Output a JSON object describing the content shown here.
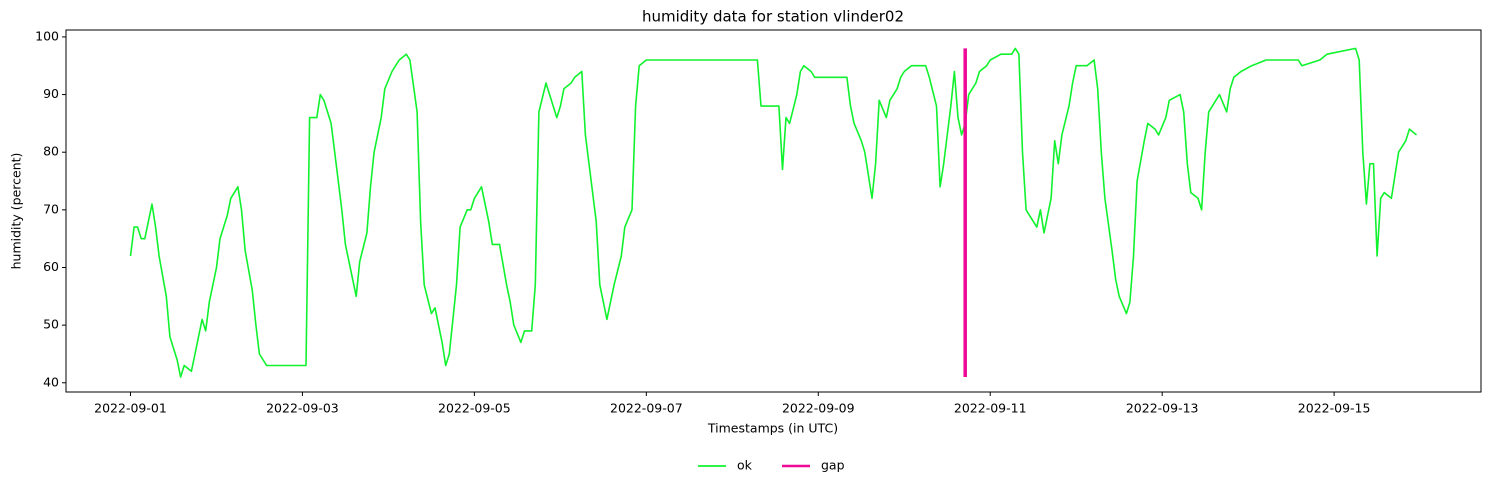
{
  "chart_data": {
    "type": "line",
    "title": "humidity data for station vlinder02",
    "xlabel": "Timestamps (in UTC)",
    "ylabel": "humidity (percent)",
    "xlim": [
      "2022-08-31 06:00",
      "2022-09-16 17:00"
    ],
    "xticks": [
      "2022-09-01",
      "2022-09-03",
      "2022-09-05",
      "2022-09-07",
      "2022-09-09",
      "2022-09-11",
      "2022-09-13",
      "2022-09-15"
    ],
    "ylim": [
      38.4,
      101.2
    ],
    "yticks": [
      40,
      50,
      60,
      70,
      80,
      90,
      100
    ],
    "legend": "bottom",
    "series": [
      {
        "name": "ok",
        "color": "#11f22e",
        "width": 1.6,
        "x": [
          "2022-09-01 00:00",
          "2022-09-01 01:00",
          "2022-09-01 02:00",
          "2022-09-01 03:00",
          "2022-09-01 04:00",
          "2022-09-01 06:00",
          "2022-09-01 07:00",
          "2022-09-01 08:00",
          "2022-09-01 10:00",
          "2022-09-01 11:00",
          "2022-09-01 13:00",
          "2022-09-01 14:00",
          "2022-09-01 15:00",
          "2022-09-01 17:00",
          "2022-09-01 18:00",
          "2022-09-01 20:00",
          "2022-09-01 21:00",
          "2022-09-01 22:00",
          "2022-09-02 00:00",
          "2022-09-02 01:00",
          "2022-09-02 03:00",
          "2022-09-02 04:00",
          "2022-09-02 06:00",
          "2022-09-02 07:00",
          "2022-09-02 08:00",
          "2022-09-02 10:00",
          "2022-09-02 11:00",
          "2022-09-02 12:00",
          "2022-09-02 14:00",
          "2022-09-02 15:00",
          "2022-09-03 01:00",
          "2022-09-03 02:00",
          "2022-09-03 04:00",
          "2022-09-03 05:00",
          "2022-09-03 06:00",
          "2022-09-03 08:00",
          "2022-09-03 09:00",
          "2022-09-03 11:00",
          "2022-09-03 12:00",
          "2022-09-03 13:00",
          "2022-09-03 15:00",
          "2022-09-03 16:00",
          "2022-09-03 18:00",
          "2022-09-03 19:00",
          "2022-09-03 20:00",
          "2022-09-03 22:00",
          "2022-09-03 23:00",
          "2022-09-04 01:00",
          "2022-09-04 02:00",
          "2022-09-04 03:00",
          "2022-09-04 05:00",
          "2022-09-04 06:00",
          "2022-09-04 08:00",
          "2022-09-04 09:00",
          "2022-09-04 10:00",
          "2022-09-04 12:00",
          "2022-09-04 13:00",
          "2022-09-04 15:00",
          "2022-09-04 16:00",
          "2022-09-04 17:00",
          "2022-09-04 19:00",
          "2022-09-04 20:00",
          "2022-09-04 22:00",
          "2022-09-04 23:00",
          "2022-09-05 00:00",
          "2022-09-05 02:00",
          "2022-09-05 04:00",
          "2022-09-05 05:00",
          "2022-09-05 07:00",
          "2022-09-05 09:00",
          "2022-09-05 10:00",
          "2022-09-05 11:00",
          "2022-09-05 13:00",
          "2022-09-05 14:00",
          "2022-09-05 16:00",
          "2022-09-05 17:00",
          "2022-09-05 18:00",
          "2022-09-05 20:00",
          "2022-09-05 21:00",
          "2022-09-05 23:00",
          "2022-09-06 00:00",
          "2022-09-06 01:00",
          "2022-09-06 03:00",
          "2022-09-06 04:00",
          "2022-09-06 06:00",
          "2022-09-06 07:00",
          "2022-09-06 08:00",
          "2022-09-06 10:00",
          "2022-09-06 11:00",
          "2022-09-06 13:00",
          "2022-09-06 14:00",
          "2022-09-06 15:00",
          "2022-09-06 17:00",
          "2022-09-06 18:00",
          "2022-09-06 20:00",
          "2022-09-06 21:00",
          "2022-09-06 22:00",
          "2022-09-07 00:00",
          "2022-09-08 07:00",
          "2022-09-08 08:00",
          "2022-09-08 13:00",
          "2022-09-08 14:00",
          "2022-09-08 15:00",
          "2022-09-08 16:00",
          "2022-09-08 18:00",
          "2022-09-08 19:00",
          "2022-09-08 20:00",
          "2022-09-08 22:00",
          "2022-09-08 23:00",
          "2022-09-09 08:00",
          "2022-09-09 09:00",
          "2022-09-09 10:00",
          "2022-09-09 12:00",
          "2022-09-09 13:00",
          "2022-09-09 15:00",
          "2022-09-09 16:00",
          "2022-09-09 17:00",
          "2022-09-09 19:00",
          "2022-09-09 20:00",
          "2022-09-09 22:00",
          "2022-09-09 23:00",
          "2022-09-10 00:00",
          "2022-09-10 02:00",
          "2022-09-10 06:00",
          "2022-09-10 07:00",
          "2022-09-10 09:00",
          "2022-09-10 10:00",
          "2022-09-10 11:00",
          "2022-09-10 13:00",
          "2022-09-10 14:00",
          "2022-09-10 15:00",
          "2022-09-10 16:00",
          "2022-09-10 17:00",
          "2022-09-10 18:00",
          "2022-09-10 20:00",
          "2022-09-10 21:00",
          "2022-09-10 23:00",
          "2022-09-11 00:00",
          "2022-09-11 03:00",
          "2022-09-11 06:00",
          "2022-09-11 07:00",
          "2022-09-11 08:00",
          "2022-09-11 09:00",
          "2022-09-11 10:00",
          "2022-09-11 11:00",
          "2022-09-11 13:00",
          "2022-09-11 14:00",
          "2022-09-11 15:00",
          "2022-09-11 17:00",
          "2022-09-11 18:00",
          "2022-09-11 19:00",
          "2022-09-11 20:00",
          "2022-09-11 22:00",
          "2022-09-11 23:00",
          "2022-09-12 00:00",
          "2022-09-12 03:00",
          "2022-09-12 05:00",
          "2022-09-12 06:00",
          "2022-09-12 07:00",
          "2022-09-12 08:00",
          "2022-09-12 10:00",
          "2022-09-12 11:00",
          "2022-09-12 12:00",
          "2022-09-12 14:00",
          "2022-09-12 15:00",
          "2022-09-12 16:00",
          "2022-09-12 17:00",
          "2022-09-12 19:00",
          "2022-09-12 20:00",
          "2022-09-12 22:00",
          "2022-09-12 23:00",
          "2022-09-13 01:00",
          "2022-09-13 02:00",
          "2022-09-13 05:00",
          "2022-09-13 06:00",
          "2022-09-13 07:00",
          "2022-09-13 08:00",
          "2022-09-13 10:00",
          "2022-09-13 11:00",
          "2022-09-13 12:00",
          "2022-09-13 13:00",
          "2022-09-13 15:00",
          "2022-09-13 16:00",
          "2022-09-13 18:00",
          "2022-09-13 19:00",
          "2022-09-13 20:00",
          "2022-09-13 22:00",
          "2022-09-14 01:00",
          "2022-09-14 05:00",
          "2022-09-14 14:00",
          "2022-09-14 15:00",
          "2022-09-14 20:00",
          "2022-09-14 22:00",
          "2022-09-15 06:00",
          "2022-09-15 07:00",
          "2022-09-15 08:00",
          "2022-09-15 09:00",
          "2022-09-15 10:00",
          "2022-09-15 11:00",
          "2022-09-15 12:00",
          "2022-09-15 13:00",
          "2022-09-15 14:00",
          "2022-09-15 16:00",
          "2022-09-15 17:00",
          "2022-09-15 18:00",
          "2022-09-15 20:00",
          "2022-09-15 21:00",
          "2022-09-15 23:00"
        ],
        "values": [
          62,
          67,
          67,
          65,
          65,
          71,
          67,
          62,
          55,
          48,
          44,
          41,
          43,
          42,
          45,
          51,
          49,
          54,
          60,
          65,
          69,
          72,
          74,
          70,
          63,
          56,
          50,
          45,
          43,
          43,
          43,
          86,
          86,
          90,
          89,
          85,
          80,
          70,
          64,
          61,
          55,
          61,
          66,
          74,
          80,
          86,
          91,
          94,
          95,
          96,
          97,
          96,
          87,
          68,
          57,
          52,
          53,
          47,
          43,
          45,
          57,
          67,
          70,
          70,
          72,
          74,
          68,
          64,
          64,
          57,
          54,
          50,
          47,
          49,
          49,
          57,
          87,
          92,
          90,
          86,
          88,
          91,
          92,
          93,
          94,
          83,
          78,
          68,
          57,
          51,
          54,
          57,
          62,
          67,
          70,
          88,
          95,
          96,
          96,
          88,
          88,
          77,
          86,
          85,
          90,
          94,
          95,
          94,
          93,
          93,
          88,
          85,
          82,
          80,
          72,
          78,
          89,
          86,
          89,
          91,
          93,
          94,
          95,
          95,
          93,
          88,
          74,
          78,
          88,
          94,
          86,
          83,
          85,
          90,
          92,
          94,
          95,
          96,
          97,
          97,
          98,
          97,
          80,
          70,
          69,
          67,
          70,
          66,
          72,
          82,
          78,
          83,
          88,
          92,
          95,
          95,
          96,
          91,
          80,
          72,
          63,
          58,
          55,
          52,
          54,
          62,
          75,
          82,
          85,
          84,
          83,
          86,
          89,
          90,
          87,
          78,
          73,
          72,
          70,
          80,
          87,
          89,
          90,
          87,
          91,
          93,
          94,
          95,
          96,
          96,
          95,
          96,
          97,
          98,
          96,
          80,
          71,
          78,
          78,
          62,
          72,
          73,
          72,
          76,
          80,
          82,
          84,
          83
        ]
      },
      {
        "name": "gap",
        "color": "#ee0a96",
        "width": 3.5,
        "x": [
          "2022-09-10 17:00",
          "2022-09-10 17:00"
        ],
        "values": [
          41,
          98
        ]
      }
    ]
  }
}
